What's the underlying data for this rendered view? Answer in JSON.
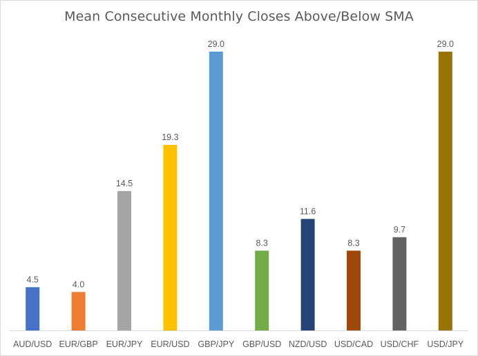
{
  "chart_data": {
    "type": "bar",
    "title": "Mean Consecutive Monthly Closes Above/Below SMA",
    "xlabel": "",
    "ylabel": "",
    "ylim": [
      0,
      32
    ],
    "grid": false,
    "legend": "none",
    "categories": [
      "AUD/USD",
      "EUR/GBP",
      "EUR/JPY",
      "EUR/USD",
      "GBP/JPY",
      "GBP/USD",
      "NZD/USD",
      "USD/CAD",
      "USD/CHF",
      "USD/JPY"
    ],
    "values": [
      4.5,
      4.0,
      14.5,
      19.3,
      29.0,
      8.3,
      11.6,
      8.3,
      9.7,
      29.0
    ],
    "data_labels": [
      "4.5",
      "4.0",
      "14.5",
      "19.3",
      "29.0",
      "8.3",
      "11.6",
      "8.3",
      "9.7",
      "29.0"
    ],
    "colors": [
      "#4472c4",
      "#ed7d31",
      "#a5a5a5",
      "#ffc000",
      "#5b9bd5",
      "#70ad47",
      "#264478",
      "#9e480e",
      "#636363",
      "#997300"
    ]
  }
}
